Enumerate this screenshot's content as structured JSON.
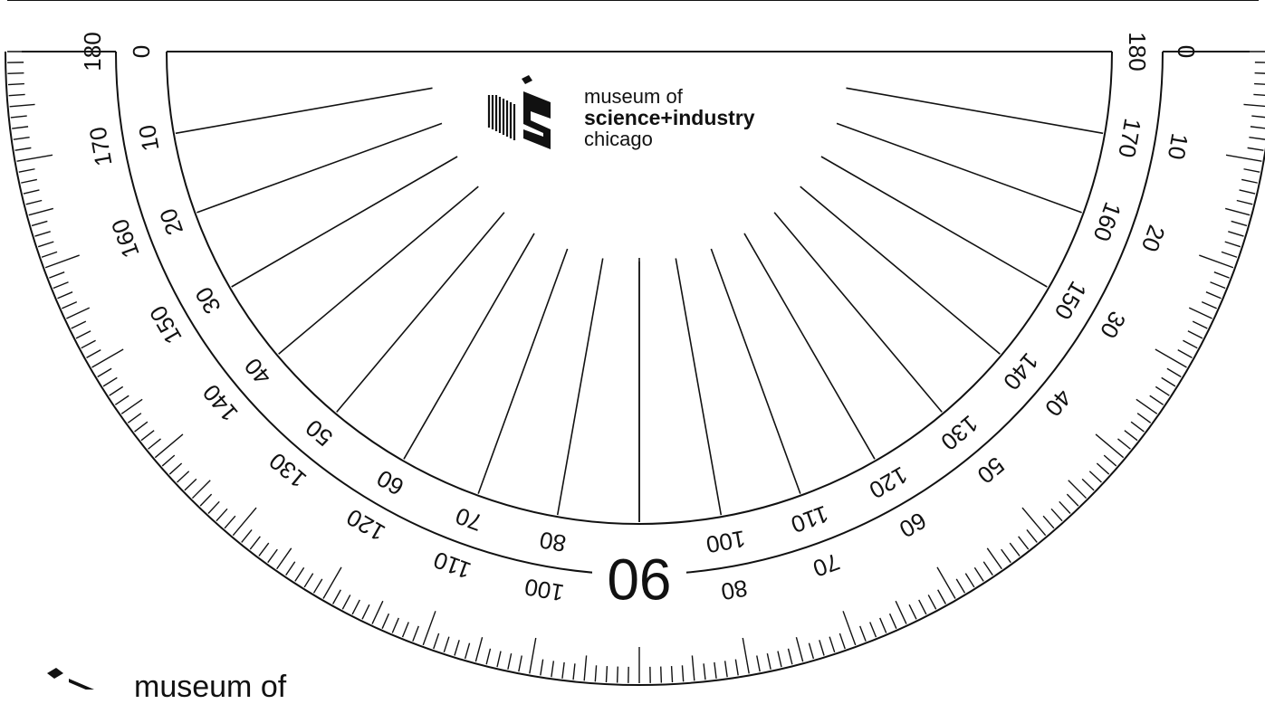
{
  "protractor": {
    "outer_scale_labels": [
      0,
      10,
      20,
      30,
      40,
      50,
      60,
      70,
      80,
      90,
      100,
      110,
      120,
      130,
      140,
      150,
      160,
      170,
      180
    ],
    "inner_scale_labels": [
      0,
      10,
      20,
      30,
      40,
      50,
      60,
      70,
      80,
      90,
      100,
      110,
      120,
      130,
      140,
      150,
      160,
      170,
      180
    ],
    "center_label": "90",
    "ray_count": 17
  },
  "logo_top": {
    "line1": "museum of",
    "line2": "science+industry",
    "line3": "chicago"
  },
  "logo_bottom": {
    "line1": "museum of"
  },
  "colors": {
    "ink": "#111111",
    "paper": "#ffffff"
  }
}
